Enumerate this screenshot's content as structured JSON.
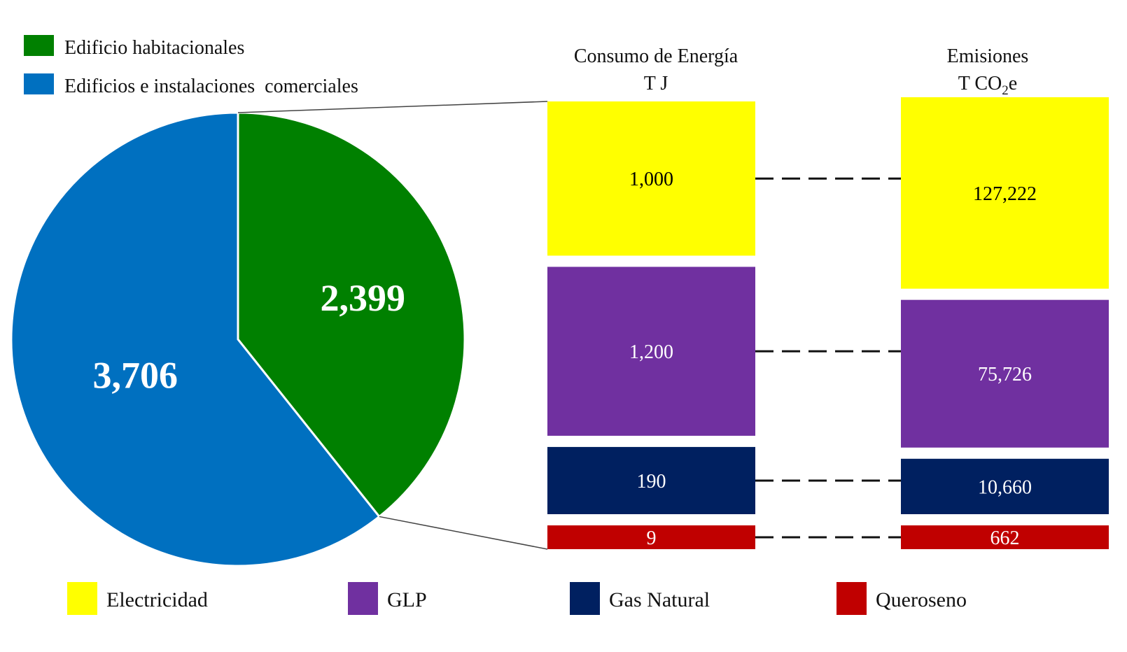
{
  "chart_data": [
    {
      "type": "pie",
      "slices": [
        {
          "label": "Edificio habitacionales",
          "value": 2399,
          "display": "2,399",
          "color": "#008000"
        },
        {
          "label": "Edificios e instalaciones  comerciales",
          "value": 3706,
          "display": "3,706",
          "color": "#0070C0"
        }
      ],
      "legend_position": "top-left"
    },
    {
      "type": "bar",
      "stacked": true,
      "columns": [
        {
          "title_line1": "Consumo de Energía",
          "title_line2": "T J"
        },
        {
          "title_line1": "Emisiones",
          "title_line2_prefix": "T CO",
          "title_line2_sub": "2",
          "title_line2_suffix": "e"
        }
      ],
      "series": [
        {
          "name": "Electricidad",
          "color": "#FFFF00",
          "text_color": "#000000",
          "energy": 1000,
          "energy_label": "1,000",
          "emissions": 127222,
          "emissions_label": "127,222"
        },
        {
          "name": "GLP",
          "color": "#7030A0",
          "text_color": "#ffffff",
          "energy": 1200,
          "energy_label": "1,200",
          "emissions": 75726,
          "emissions_label": "75,726"
        },
        {
          "name": "Gas Natural",
          "color": "#002060",
          "text_color": "#ffffff",
          "energy": 190,
          "energy_label": "190",
          "emissions": 10660,
          "emissions_label": "10,660"
        },
        {
          "name": "Queroseno",
          "color": "#C00000",
          "text_color": "#ffffff",
          "energy": 9,
          "energy_label": "9",
          "emissions": 662,
          "emissions_label": "662"
        }
      ],
      "legend_position": "bottom"
    }
  ]
}
